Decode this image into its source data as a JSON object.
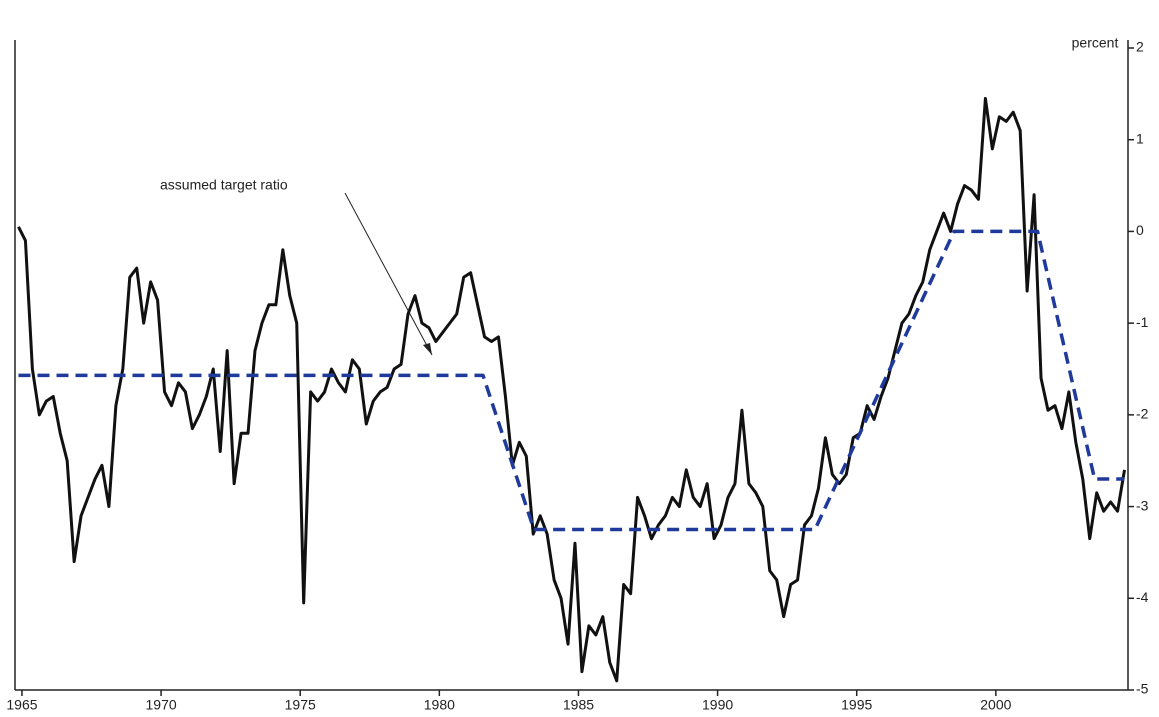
{
  "chart_data": {
    "type": "line",
    "y_label": "percent",
    "annotation": "assumed target ratio",
    "xlim": [
      1964.75,
      2004.75
    ],
    "xticks": [
      1965,
      1970,
      1975,
      1980,
      1985,
      1990,
      1995,
      2000
    ],
    "ylim": [
      -5,
      2
    ],
    "yticks": [
      -5,
      -4,
      -3,
      -2,
      -1,
      0,
      1,
      2
    ],
    "y_axis_side": "right",
    "series": [
      {
        "color": "#111111",
        "dashed": false,
        "x": [
          1964.875,
          1965.125,
          1965.375,
          1965.625,
          1965.875,
          1966.125,
          1966.375,
          1966.625,
          1966.875,
          1967.125,
          1967.375,
          1967.625,
          1967.875,
          1968.125,
          1968.375,
          1968.625,
          1968.875,
          1969.125,
          1969.375,
          1969.625,
          1969.875,
          1970.125,
          1970.375,
          1970.625,
          1970.875,
          1971.125,
          1971.375,
          1971.625,
          1971.875,
          1972.125,
          1972.375,
          1972.625,
          1972.875,
          1973.125,
          1973.375,
          1973.625,
          1973.875,
          1974.125,
          1974.375,
          1974.625,
          1974.875,
          1975.125,
          1975.375,
          1975.625,
          1975.875,
          1976.125,
          1976.375,
          1976.625,
          1976.875,
          1977.125,
          1977.375,
          1977.625,
          1977.875,
          1978.125,
          1978.375,
          1978.625,
          1978.875,
          1979.125,
          1979.375,
          1979.625,
          1979.875,
          1980.125,
          1980.375,
          1980.625,
          1980.875,
          1981.125,
          1981.375,
          1981.625,
          1981.875,
          1982.125,
          1982.375,
          1982.625,
          1982.875,
          1983.125,
          1983.375,
          1983.625,
          1983.875,
          1984.125,
          1984.375,
          1984.625,
          1984.875,
          1985.125,
          1985.375,
          1985.625,
          1985.875,
          1986.125,
          1986.375,
          1986.625,
          1986.875,
          1987.125,
          1987.375,
          1987.625,
          1987.875,
          1988.125,
          1988.375,
          1988.625,
          1988.875,
          1989.125,
          1989.375,
          1989.625,
          1989.875,
          1990.125,
          1990.375,
          1990.625,
          1990.875,
          1991.125,
          1991.375,
          1991.625,
          1991.875,
          1992.125,
          1992.375,
          1992.625,
          1992.875,
          1993.125,
          1993.375,
          1993.625,
          1993.875,
          1994.125,
          1994.375,
          1994.625,
          1994.875,
          1995.125,
          1995.375,
          1995.625,
          1995.875,
          1996.125,
          1996.375,
          1996.625,
          1996.875,
          1997.125,
          1997.375,
          1997.625,
          1997.875,
          1998.125,
          1998.375,
          1998.625,
          1998.875,
          1999.125,
          1999.375,
          1999.625,
          1999.875,
          2000.125,
          2000.375,
          2000.625,
          2000.875,
          2001.125,
          2001.375,
          2001.625,
          2001.875,
          2002.125,
          2002.375,
          2002.625,
          2002.875,
          2003.125,
          2003.375,
          2003.625,
          2003.875,
          2004.125,
          2004.375,
          2004.625
        ],
        "values": [
          0.05,
          -0.1,
          -1.5,
          -2.0,
          -1.85,
          -1.8,
          -2.2,
          -2.5,
          -3.6,
          -3.1,
          -2.9,
          -2.7,
          -2.55,
          -3.0,
          -1.9,
          -1.5,
          -0.5,
          -0.4,
          -1.0,
          -0.55,
          -0.75,
          -1.75,
          -1.9,
          -1.65,
          -1.75,
          -2.15,
          -2.0,
          -1.8,
          -1.5,
          -2.4,
          -1.3,
          -2.75,
          -2.2,
          -2.2,
          -1.3,
          -1.0,
          -0.8,
          -0.8,
          -0.2,
          -0.7,
          -1.0,
          -4.05,
          -1.75,
          -1.85,
          -1.75,
          -1.5,
          -1.65,
          -1.75,
          -1.4,
          -1.5,
          -2.1,
          -1.85,
          -1.75,
          -1.7,
          -1.5,
          -1.45,
          -0.9,
          -0.7,
          -1.0,
          -1.05,
          -1.2,
          -1.1,
          -1.0,
          -0.9,
          -0.5,
          -0.45,
          -0.8,
          -1.15,
          -1.2,
          -1.15,
          -1.8,
          -2.55,
          -2.3,
          -2.45,
          -3.3,
          -3.1,
          -3.3,
          -3.8,
          -4.0,
          -4.5,
          -3.4,
          -4.8,
          -4.3,
          -4.4,
          -4.2,
          -4.7,
          -4.9,
          -3.85,
          -3.95,
          -2.9,
          -3.1,
          -3.35,
          -3.2,
          -3.1,
          -2.9,
          -3.0,
          -2.6,
          -2.9,
          -3.0,
          -2.75,
          -3.35,
          -3.2,
          -2.9,
          -2.75,
          -1.95,
          -2.75,
          -2.85,
          -3.0,
          -3.7,
          -3.8,
          -4.2,
          -3.85,
          -3.8,
          -3.2,
          -3.1,
          -2.8,
          -2.25,
          -2.65,
          -2.75,
          -2.65,
          -2.25,
          -2.2,
          -1.9,
          -2.05,
          -1.8,
          -1.6,
          -1.3,
          -1.0,
          -0.9,
          -0.7,
          -0.55,
          -0.2,
          0.0,
          0.2,
          0.0,
          0.3,
          0.5,
          0.45,
          0.35,
          1.45,
          0.9,
          1.25,
          1.2,
          1.3,
          1.1,
          -0.65,
          0.4,
          -1.6,
          -1.95,
          -1.9,
          -2.15,
          -1.75,
          -2.3,
          -2.7,
          -3.35,
          -2.85,
          -3.05,
          -2.95,
          -3.05,
          -2.6
        ]
      },
      {
        "color": "#1f3a9a",
        "dashed": true,
        "x": [
          1964.875,
          1981.57,
          1983.4,
          1993.5,
          1998.5,
          2001.5,
          2003.55,
          2004.625
        ],
        "values": [
          -1.57,
          -1.57,
          -3.25,
          -3.25,
          0,
          0,
          -2.7,
          -2.7
        ]
      }
    ]
  }
}
